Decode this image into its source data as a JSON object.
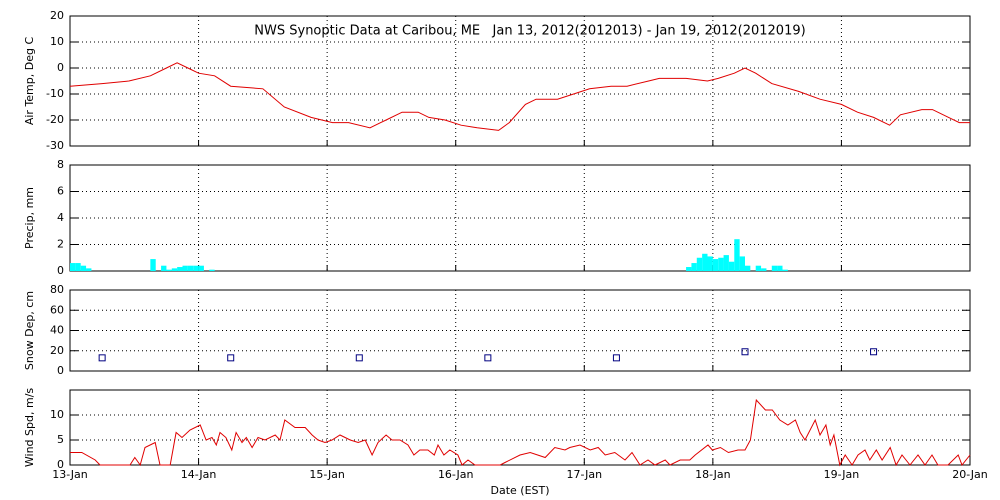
{
  "chart_data": [
    {
      "type": "line",
      "title": "NWS Synoptic Data at Caribou, ME   Jan 13, 2012(2012013) - Jan 19, 2012(2012019)",
      "y_label": "Air Temp, Deg C",
      "color": "#e00000",
      "grid": true,
      "xlim": [
        0,
        168
      ],
      "xticks": [
        0,
        24,
        48,
        72,
        96,
        120,
        144,
        168
      ],
      "ylim": [
        -30,
        20
      ],
      "yticks": [
        -30,
        -20,
        -10,
        0,
        10,
        20
      ],
      "x": [
        0,
        6,
        11,
        15,
        18,
        20,
        22,
        24,
        27,
        30,
        36,
        40,
        45,
        49,
        52,
        56,
        59,
        62,
        65,
        67,
        70,
        73,
        76,
        80,
        82,
        85,
        87,
        91,
        94,
        97,
        101,
        104,
        108,
        110,
        115,
        119,
        121,
        124,
        126,
        128,
        131,
        136,
        140,
        144,
        147,
        150,
        153,
        155,
        159,
        161,
        164,
        166,
        168
      ],
      "values": [
        -7,
        -6,
        -5,
        -3,
        0,
        2,
        0,
        -2,
        -3,
        -7,
        -8,
        -15,
        -19,
        -21,
        -21,
        -23,
        -20,
        -17,
        -17,
        -19,
        -20,
        -22,
        -23,
        -24,
        -21,
        -14,
        -12,
        -12,
        -10,
        -8,
        -7,
        -7,
        -5,
        -4,
        -4,
        -5,
        -4,
        -2,
        0,
        -2,
        -6,
        -9,
        -12,
        -14,
        -17,
        -19,
        -22,
        -18,
        -16,
        -16,
        -19,
        -21,
        -21
      ]
    },
    {
      "type": "bar",
      "y_label": "Precip, mm",
      "color": "#00ffff",
      "grid": true,
      "xlim": [
        0,
        168
      ],
      "xticks": [
        0,
        24,
        48,
        72,
        96,
        120,
        144,
        168
      ],
      "ylim": [
        0,
        8
      ],
      "yticks": [
        0,
        2,
        4,
        6,
        8
      ],
      "x": [
        0,
        1,
        2,
        3,
        15,
        17,
        18,
        19,
        20,
        21,
        22,
        23,
        24,
        26,
        115,
        116,
        117,
        118,
        119,
        120,
        121,
        122,
        123,
        124,
        125,
        126,
        128,
        129,
        131,
        132,
        133
      ],
      "values": [
        0.6,
        0.6,
        0.4,
        0.2,
        0.9,
        0.4,
        0.1,
        0.2,
        0.3,
        0.4,
        0.4,
        0.4,
        0.4,
        0.1,
        0.3,
        0.6,
        1.0,
        1.3,
        1.1,
        0.9,
        1.0,
        1.2,
        0.7,
        2.4,
        1.1,
        0.4,
        0.4,
        0.2,
        0.4,
        0.4,
        0.1
      ]
    },
    {
      "type": "scatter",
      "y_label": "Snow Dep, cm",
      "color": "#000080",
      "grid": true,
      "xlim": [
        0,
        168
      ],
      "xticks": [
        0,
        24,
        48,
        72,
        96,
        120,
        144,
        168
      ],
      "ylim": [
        0,
        80
      ],
      "yticks": [
        0,
        20,
        40,
        60,
        80
      ],
      "x": [
        6,
        30,
        54,
        78,
        102,
        126,
        150
      ],
      "values": [
        13,
        13,
        13,
        13,
        13,
        19,
        19
      ]
    },
    {
      "type": "line",
      "y_label": "Wind Spd, m/s",
      "x_label": "Date (EST)",
      "color": "#e00000",
      "grid": true,
      "xlim": [
        0,
        168
      ],
      "xticks": [
        {
          "value": 0,
          "label": "13-Jan"
        },
        {
          "value": 24,
          "label": "14-Jan"
        },
        {
          "value": 48,
          "label": "15-Jan"
        },
        {
          "value": 72,
          "label": "16-Jan"
        },
        {
          "value": 96,
          "label": "17-Jan"
        },
        {
          "value": 120,
          "label": "18-Jan"
        },
        {
          "value": 144,
          "label": "19-Jan"
        },
        {
          "value": 168,
          "label": "20-Jan"
        }
      ],
      "ylim": [
        0,
        15
      ],
      "yticks": [
        0,
        5,
        10
      ],
      "x": [
        0,
        2.2,
        4.7,
        5.6,
        11.2,
        12.1,
        13.1,
        14,
        15.9,
        16.8,
        18.7,
        19.8,
        20.9,
        22.4,
        24.3,
        25.4,
        26.5,
        27.3,
        28,
        29.1,
        30.2,
        31,
        32.1,
        32.9,
        34,
        35.1,
        36.4,
        38.3,
        39.2,
        40.1,
        42,
        43.9,
        45.2,
        46.3,
        47.6,
        48.9,
        50.4,
        52.3,
        53.8,
        55.1,
        56.4,
        57.5,
        59,
        60.1,
        61.6,
        63.1,
        64.2,
        65.3,
        66.8,
        68,
        68.7,
        69.8,
        70.9,
        72.4,
        73.2,
        74.3,
        75.6,
        80.3,
        81.2,
        84,
        85.9,
        88.7,
        90.5,
        92.4,
        93.3,
        95.2,
        97.1,
        98.6,
        99.9,
        101.7,
        103.6,
        104.9,
        106.4,
        107.9,
        109.2,
        111.1,
        112,
        113.9,
        115.7,
        116.7,
        119.1,
        119.9,
        121.4,
        122.9,
        124.7,
        126,
        127,
        128.1,
        129.8,
        131.1,
        132.5,
        134,
        135.4,
        136.3,
        137.2,
        139.1,
        140,
        141.1,
        141.9,
        142.6,
        143.7,
        144.7,
        146,
        147.1,
        148.4,
        149.3,
        150.5,
        151.6,
        153.1,
        154.2,
        155.3,
        156.8,
        158.3,
        159.6,
        160.9,
        162,
        163.9,
        165.8,
        166.5,
        168
      ],
      "values": [
        2.5,
        2.5,
        1,
        0,
        0,
        1.5,
        0,
        3.5,
        4.5,
        0,
        0,
        6.5,
        5.5,
        7,
        8,
        5,
        5.5,
        4,
        6.5,
        5.5,
        3,
        6.5,
        4.5,
        5.5,
        3.5,
        5.5,
        5,
        6,
        5,
        9,
        7.5,
        7.5,
        6,
        5,
        4.5,
        5,
        6,
        5,
        4.5,
        5,
        2,
        4.5,
        6,
        5,
        5,
        4,
        2,
        3,
        3,
        2,
        4,
        2,
        3,
        2,
        0,
        1,
        0,
        0,
        0.5,
        2,
        2.5,
        1.5,
        3.5,
        3,
        3.5,
        4,
        3,
        3.5,
        2,
        2.5,
        1,
        2.5,
        0,
        1,
        0,
        1,
        0,
        1,
        1,
        2,
        4,
        3,
        3.5,
        2.5,
        3,
        3,
        5,
        13,
        11,
        11,
        9,
        8,
        9,
        6.5,
        5,
        9,
        6,
        8,
        4,
        6,
        0,
        2,
        0,
        2,
        3,
        1,
        3,
        1,
        3.5,
        0,
        2,
        0,
        2,
        0,
        2,
        0,
        0,
        2,
        0,
        2
      ]
    }
  ]
}
